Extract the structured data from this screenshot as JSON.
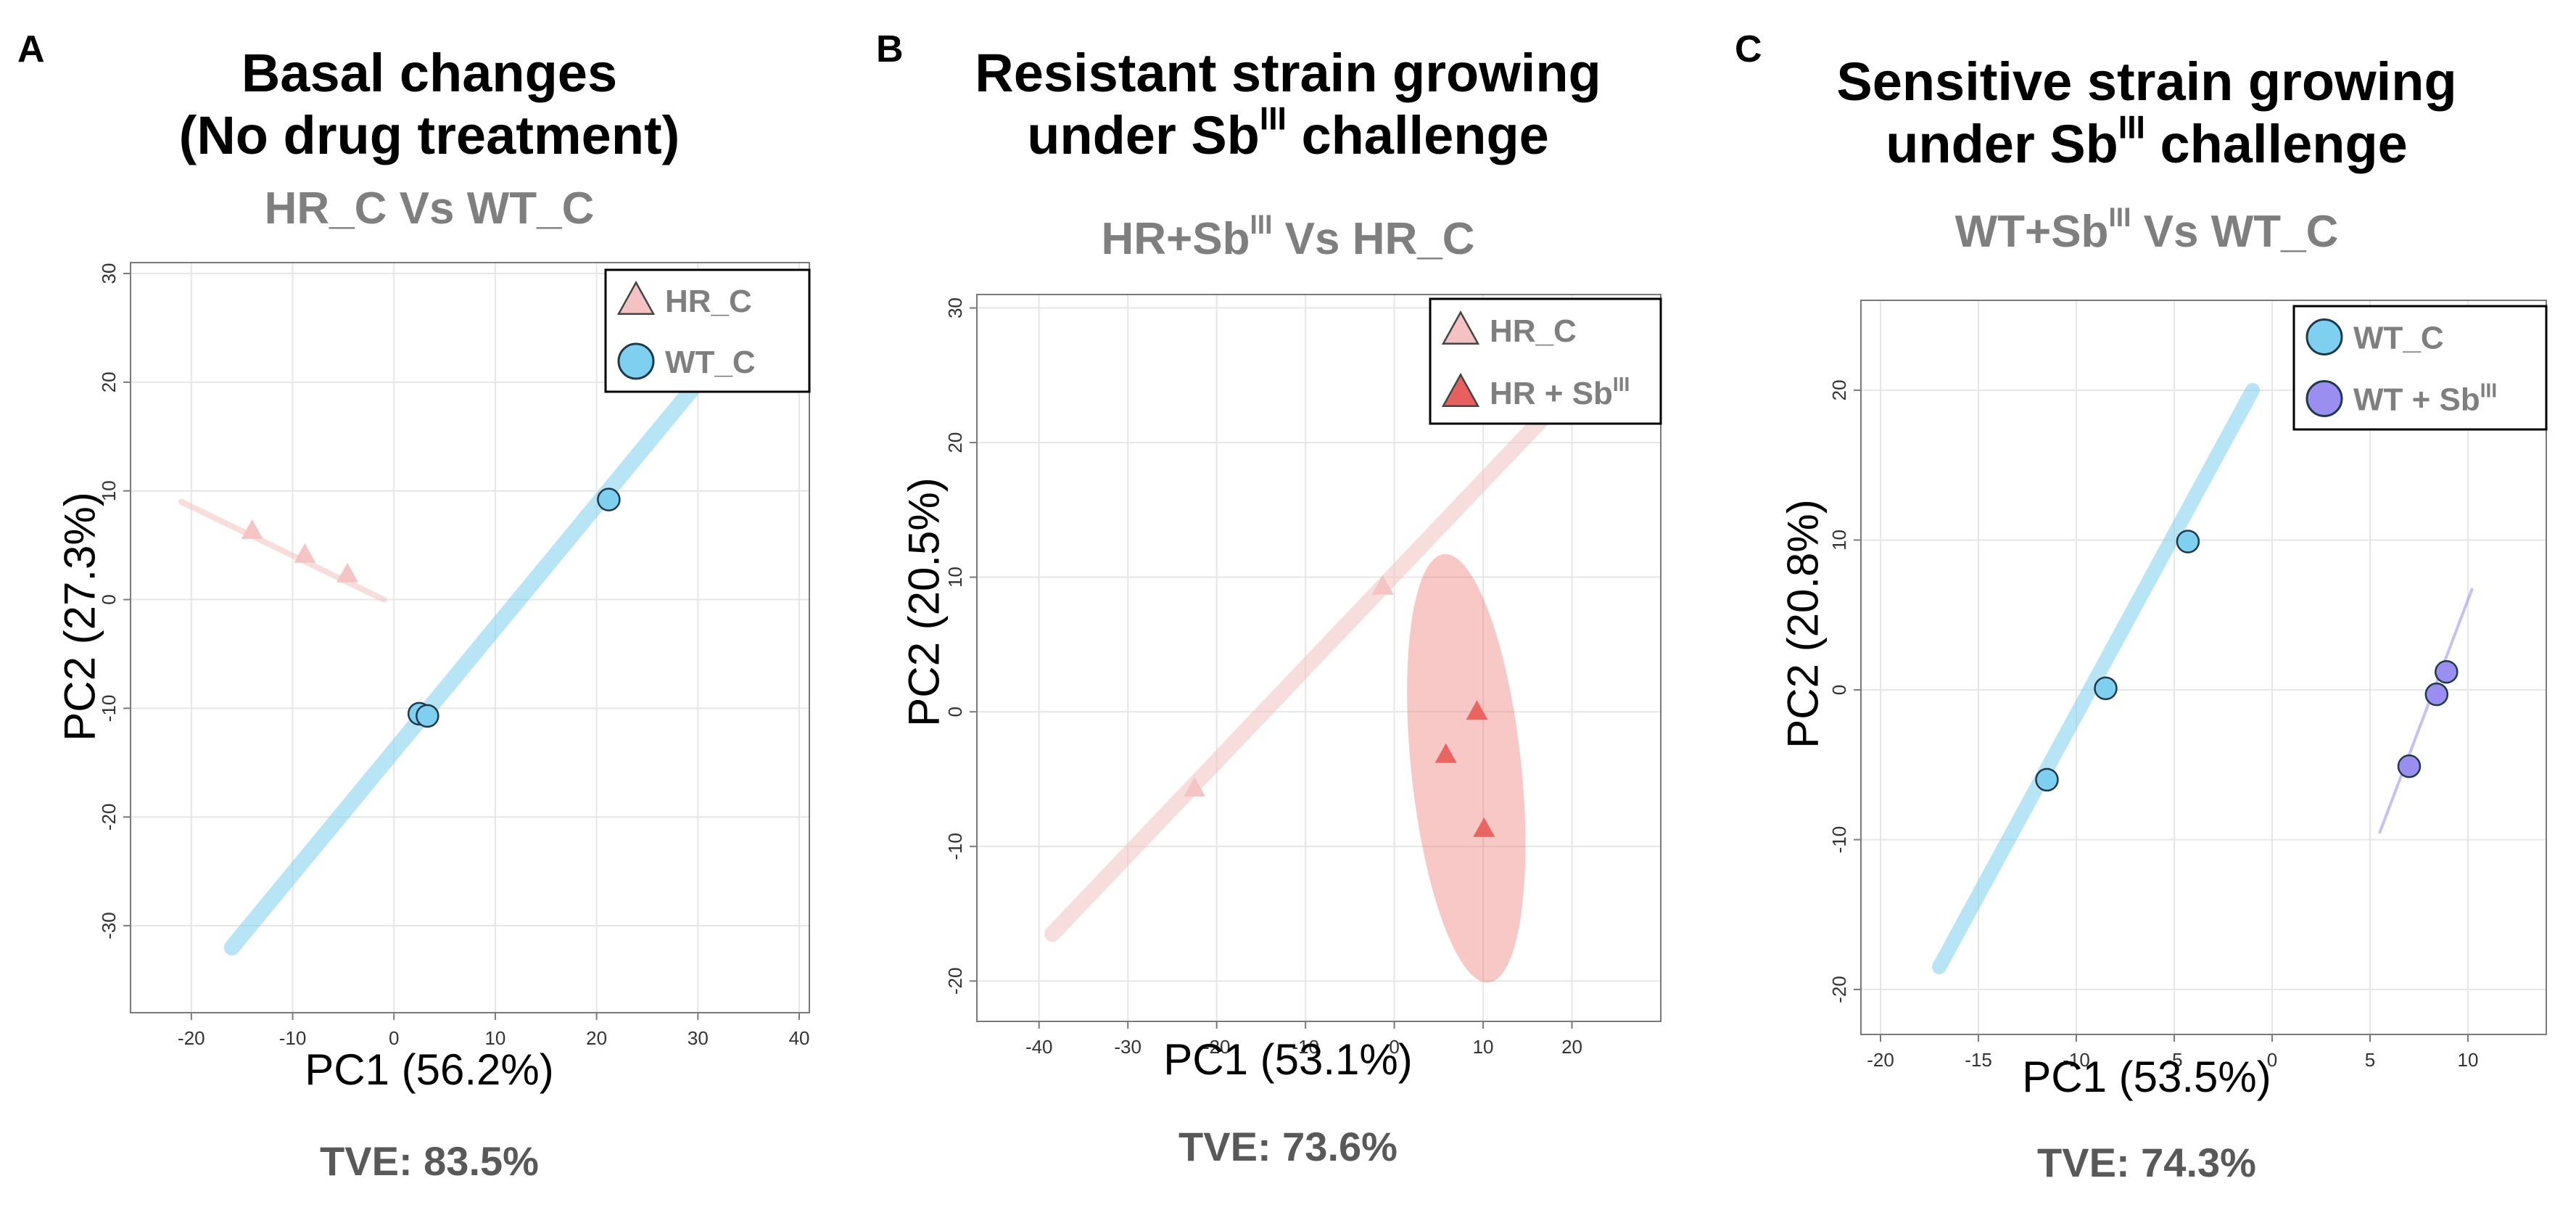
{
  "colors": {
    "hr_c": "#f4c2c2",
    "hr_sb": "#e8605d",
    "wt_c": "#7fd0f0",
    "wt_sb": "#9a8ef0",
    "grid": "#e6e6e6",
    "frame": "#7a7a7a",
    "subtitle": "#7f7f7f",
    "tve": "#595959"
  },
  "panels": [
    {
      "letter": "A",
      "title_line1": "Basal changes",
      "title_line2": "(No drug treatment)",
      "subtitle": "HR_C Vs WT_C",
      "xlabel": "PC1 (56.2%)",
      "ylabel": "PC2 (27.3%)",
      "tve": "TVE: 83.5%",
      "legend": [
        {
          "shape": "triangle",
          "color_key": "hr_c",
          "label": "HR_C"
        },
        {
          "shape": "circle",
          "color_key": "wt_c",
          "label": "WT_C"
        }
      ]
    },
    {
      "letter": "B",
      "title_line1": "Resistant strain growing",
      "title_line2_pre": "under Sb",
      "title_line2_sup": "III",
      "title_line2_post": " challenge",
      "subtitle_pre": "HR+Sb",
      "subtitle_sup": "III",
      "subtitle_post": " Vs HR_C",
      "xlabel": "PC1 (53.1%)",
      "ylabel": "PC2 (20.5%)",
      "tve": "TVE: 73.6%",
      "legend": [
        {
          "shape": "triangle",
          "color_key": "hr_c",
          "label": "HR_C"
        },
        {
          "shape": "triangle",
          "color_key": "hr_sb",
          "label": "HR + Sb",
          "sup": "III"
        }
      ]
    },
    {
      "letter": "C",
      "title_line1": "Sensitive strain growing",
      "title_line2_pre": "under Sb",
      "title_line2_sup": "III",
      "title_line2_post": " challenge",
      "subtitle_pre": "WT+Sb",
      "subtitle_sup": "III",
      "subtitle_post": " Vs WT_C",
      "xlabel": "PC1 (53.5%)",
      "ylabel": "PC2 (20.8%)",
      "tve": "TVE: 74.3%",
      "legend": [
        {
          "shape": "circle",
          "color_key": "wt_c",
          "label": "WT_C"
        },
        {
          "shape": "circle",
          "color_key": "wt_sb",
          "label": "WT + Sb",
          "sup": "III"
        }
      ]
    }
  ],
  "chart_data": [
    {
      "type": "scatter",
      "title": "Basal changes (No drug treatment)",
      "subtitle": "HR_C Vs WT_C",
      "xlabel": "PC1 (56.2%)",
      "ylabel": "PC2 (27.3%)",
      "xlim": [
        -26,
        41
      ],
      "ylim": [
        -38,
        31
      ],
      "xticks": [
        -20,
        -10,
        0,
        10,
        20,
        30,
        40
      ],
      "yticks": [
        -30,
        -20,
        -10,
        0,
        10,
        20,
        30
      ],
      "grid": true,
      "legend_position": "top-right",
      "series": [
        {
          "name": "HR_C",
          "color_key": "hr_c",
          "marker": "triangle",
          "points": [
            [
              -14,
              6.2
            ],
            [
              -8.8,
              4
            ],
            [
              -4.6,
              2.2
            ]
          ],
          "band": {
            "type": "line",
            "from": [
              -21,
              9
            ],
            "to": [
              -1,
              0
            ],
            "width": 8
          }
        },
        {
          "name": "WT_C",
          "color_key": "wt_c",
          "marker": "circle",
          "points": [
            [
              21.2,
              9.2
            ],
            [
              2.5,
              -10.5
            ],
            [
              3.3,
              -10.7
            ]
          ],
          "band": {
            "type": "line",
            "from": [
              -16,
              -32
            ],
            "to": [
              30,
              20
            ],
            "width": 22
          }
        }
      ]
    },
    {
      "type": "scatter",
      "title": "Resistant strain growing under SbIII challenge",
      "subtitle": "HR+SbIII Vs HR_C",
      "xlabel": "PC1 (53.1%)",
      "ylabel": "PC2 (20.5%)",
      "xlim": [
        -47,
        30
      ],
      "ylim": [
        -23,
        31
      ],
      "xticks": [
        -40,
        -30,
        -20,
        -10,
        0,
        10,
        20
      ],
      "yticks": [
        -20,
        -10,
        0,
        10,
        20,
        30
      ],
      "grid": true,
      "legend_position": "top-right",
      "series": [
        {
          "name": "HR_C",
          "color_key": "hr_c",
          "marker": "triangle",
          "points": [
            [
              -22.5,
              -5.8
            ],
            [
              -1.3,
              9.2
            ]
          ],
          "band": {
            "type": "line",
            "from": [
              -38.5,
              -16.5
            ],
            "to": [
              17,
              22
            ],
            "width": 22
          }
        },
        {
          "name": "HR + SbIII",
          "color_key": "hr_sb",
          "marker": "triangle",
          "points": [
            [
              5.8,
              -3.3
            ],
            [
              9.3,
              -0.1
            ],
            [
              10.1,
              -8.8
            ]
          ],
          "band": {
            "type": "ellipse",
            "center": [
              8.1,
              -4.2
            ],
            "rx": 6.2,
            "ry": 16,
            "rotate": -6
          }
        }
      ]
    },
    {
      "type": "scatter",
      "title": "Sensitive strain growing under SbIII challenge",
      "subtitle": "WT+SbIII Vs WT_C",
      "xlabel": "PC1 (53.5%)",
      "ylabel": "PC2 (20.8%)",
      "xlim": [
        -21,
        14
      ],
      "ylim": [
        -23,
        26
      ],
      "xticks": [
        -20,
        -15,
        -10,
        -5,
        0,
        5,
        10
      ],
      "yticks": [
        -20,
        -10,
        0,
        10,
        20
      ],
      "grid": true,
      "legend_position": "top-right",
      "series": [
        {
          "name": "WT_C",
          "color_key": "wt_c",
          "marker": "circle",
          "points": [
            [
              -11.5,
              -6
            ],
            [
              -8.5,
              0.1
            ],
            [
              -4.3,
              9.9
            ]
          ],
          "band": {
            "type": "line",
            "from": [
              -17,
              -18.5
            ],
            "to": [
              -1,
              20
            ],
            "width": 20
          }
        },
        {
          "name": "WT + SbIII",
          "color_key": "wt_sb",
          "marker": "circle",
          "points": [
            [
              7,
              -5.1
            ],
            [
              8.4,
              -0.3
            ],
            [
              8.9,
              1.2
            ]
          ],
          "band": {
            "type": "line",
            "from": [
              5.5,
              -9.5
            ],
            "to": [
              10.2,
              6.7
            ],
            "width": 4
          }
        }
      ]
    }
  ]
}
